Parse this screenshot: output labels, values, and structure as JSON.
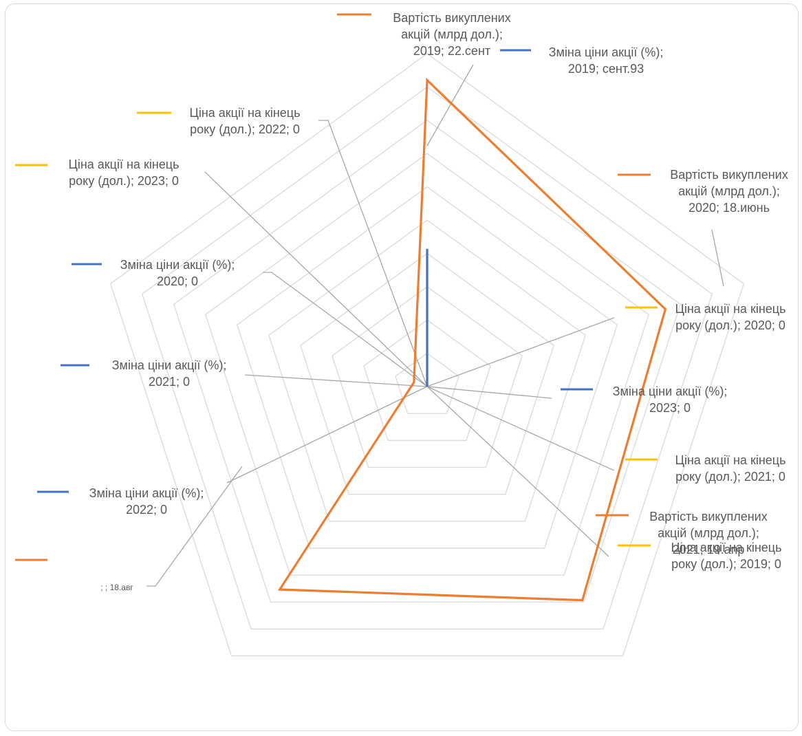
{
  "chart_data": {
    "type": "radar",
    "axes": [
      "",
      "",
      "",
      "",
      ""
    ],
    "radial_max": 24,
    "radial_gridline_step": 2.4,
    "grid": true,
    "title": "",
    "series": [
      {
        "name": "Вартість викуплених акцій (млрд дол.)",
        "color": "#ed7d31",
        "values": [
          22.09,
          18.06,
          19.04,
          18.08,
          1.0
        ]
      },
      {
        "name": "Зміна ціни акції (%)",
        "color": "#4472c4",
        "values": [
          9.93,
          0,
          0,
          0,
          0
        ]
      },
      {
        "name": "Ціна акції на кінець року (дол.)",
        "color": "#ffc000",
        "values": [
          0,
          0,
          0,
          0,
          0
        ]
      }
    ],
    "data_labels": [
      {
        "id": "l1",
        "lines": [
          "Вартість викуплених",
          "акцій (млрд дол.);",
          "2019; 22.сент"
        ],
        "color": "#ed7d31"
      },
      {
        "id": "l2",
        "lines": [
          "Зміна ціни акції (%);",
          "2019; сент.93"
        ],
        "color": "#4472c4"
      },
      {
        "id": "l3",
        "lines": [
          "Ціна акції на кінець",
          "року (дол.); 2022; 0"
        ],
        "color": "#ffc000"
      },
      {
        "id": "l4",
        "lines": [
          "Ціна акції на кінець",
          "року (дол.); 2023; 0"
        ],
        "color": "#ffc000"
      },
      {
        "id": "l5",
        "lines": [
          "Вартість викуплених",
          "акцій (млрд дол.);",
          "2020; 18.июнь"
        ],
        "color": "#ed7d31"
      },
      {
        "id": "l6",
        "lines": [
          "Зміна ціни акції (%);",
          "2020; 0"
        ],
        "color": "#4472c4"
      },
      {
        "id": "l7",
        "lines": [
          "Ціна акції на кінець",
          "року (дол.); 2020; 0"
        ],
        "color": "#ffc000"
      },
      {
        "id": "l8",
        "lines": [
          "Зміна ціни акції (%);",
          "2021; 0"
        ],
        "color": "#4472c4"
      },
      {
        "id": "l9",
        "lines": [
          "Зміна ціни акції (%);",
          "2023; 0"
        ],
        "color": "#4472c4"
      },
      {
        "id": "l10",
        "lines": [
          "Ціна акції на кінець",
          "року (дол.); 2021; 0"
        ],
        "color": "#ffc000"
      },
      {
        "id": "l11",
        "lines": [
          "Зміна ціни акції (%);",
          "2022; 0"
        ],
        "color": "#4472c4"
      },
      {
        "id": "l12",
        "lines": [
          "Ціна акції на кінець",
          "року (дол.); 2019; 0"
        ],
        "color": "#ffc000"
      },
      {
        "id": "l13",
        "lines": [
          ""
        ],
        "color": "#ed7d31"
      },
      {
        "id": "l14",
        "lines": [
          "; ; 18.авг"
        ],
        "color": "",
        "small": true
      },
      {
        "id": "l15",
        "lines": [
          "Вартість викуплених",
          "акцій (млрд дол.);",
          "2021; 19.апр"
        ],
        "color": "#ed7d31"
      }
    ]
  }
}
